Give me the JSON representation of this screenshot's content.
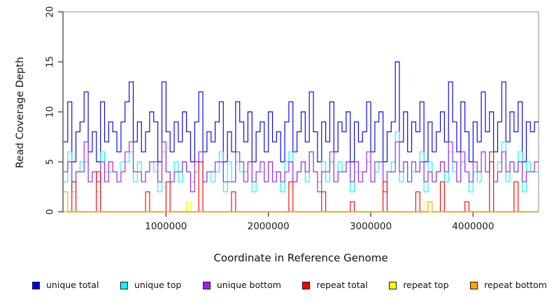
{
  "figure": {
    "background": "#FFFFFF",
    "axis_color": "#4D4D4D",
    "box_color": "#A6A6A6",
    "tick_label_color": "#1A1A1A",
    "tick_font_size": 13
  },
  "chart_data": {
    "type": "line",
    "subtype": "step",
    "title": "",
    "xlabel": "Coordinate in Reference Genome",
    "ylabel": "Read Coverage Depth",
    "xlim": [
      0,
      4640000
    ],
    "ylim": [
      0,
      20
    ],
    "xticks": [
      1000000,
      2000000,
      3000000,
      4000000
    ],
    "xtick_labels": [
      "1000000",
      "2000000",
      "3000000",
      "4000000"
    ],
    "yticks": [
      0,
      5,
      10,
      15,
      20
    ],
    "ytick_labels": [
      "0",
      "5",
      "10",
      "15",
      "20"
    ],
    "grid": false,
    "legend_position": "bottom",
    "x_start": 0,
    "bin_size": 40000,
    "series": [
      {
        "name": "unique total",
        "color": "#0000EE",
        "values": [
          7,
          11,
          5,
          8,
          9,
          12,
          6,
          8,
          5,
          11,
          7,
          9,
          8,
          6,
          9,
          11,
          13,
          7,
          9,
          6,
          8,
          10,
          9,
          5,
          13,
          8,
          6,
          9,
          7,
          10,
          8,
          5,
          9,
          12,
          6,
          8,
          7,
          9,
          11,
          5,
          8,
          6,
          11,
          9,
          7,
          10,
          5,
          8,
          9,
          6,
          10,
          7,
          8,
          5,
          9,
          11,
          6,
          8,
          10,
          7,
          12,
          8,
          5,
          9,
          7,
          11,
          6,
          9,
          8,
          10,
          5,
          9,
          7,
          8,
          11,
          6,
          9,
          10,
          5,
          8,
          9,
          15,
          7,
          10,
          6,
          9,
          8,
          11,
          5,
          9,
          6,
          8,
          10,
          7,
          13,
          9,
          6,
          11,
          8,
          5,
          9,
          7,
          12,
          8,
          10,
          6,
          9,
          13,
          7,
          10,
          8,
          11,
          5,
          9,
          8,
          9
        ]
      },
      {
        "name": "unique top",
        "color": "#00FFFF",
        "values": [
          3,
          6,
          2,
          4,
          5,
          5,
          3,
          4,
          2,
          6,
          4,
          4,
          4,
          3,
          5,
          5,
          6,
          3,
          5,
          3,
          4,
          5,
          4,
          2,
          6,
          4,
          3,
          5,
          3,
          5,
          4,
          3,
          4,
          6,
          3,
          4,
          3,
          4,
          6,
          2,
          5,
          3,
          5,
          4,
          4,
          5,
          2,
          4,
          4,
          3,
          5,
          4,
          4,
          2,
          5,
          6,
          3,
          4,
          5,
          3,
          6,
          4,
          3,
          5,
          3,
          5,
          3,
          5,
          4,
          5,
          2,
          4,
          4,
          4,
          5,
          3,
          4,
          5,
          3,
          4,
          5,
          8,
          3,
          5,
          3,
          4,
          4,
          6,
          2,
          5,
          3,
          4,
          5,
          3,
          6,
          4,
          3,
          5,
          4,
          2,
          4,
          3,
          6,
          4,
          5,
          3,
          5,
          7,
          3,
          5,
          4,
          6,
          2,
          5,
          4,
          4
        ]
      },
      {
        "name": "unique bottom",
        "color": "#A020F0",
        "values": [
          4,
          5,
          3,
          4,
          4,
          7,
          3,
          4,
          3,
          5,
          3,
          5,
          4,
          3,
          4,
          6,
          7,
          4,
          4,
          3,
          4,
          5,
          5,
          3,
          7,
          4,
          3,
          4,
          4,
          5,
          4,
          2,
          5,
          6,
          3,
          4,
          4,
          5,
          5,
          3,
          3,
          3,
          6,
          5,
          3,
          5,
          3,
          4,
          5,
          3,
          5,
          3,
          4,
          3,
          4,
          5,
          3,
          4,
          5,
          4,
          6,
          4,
          2,
          4,
          4,
          6,
          3,
          4,
          4,
          5,
          3,
          5,
          3,
          4,
          6,
          3,
          5,
          5,
          2,
          4,
          4,
          7,
          4,
          5,
          3,
          5,
          4,
          5,
          3,
          4,
          3,
          4,
          5,
          4,
          7,
          5,
          3,
          6,
          4,
          3,
          5,
          4,
          6,
          4,
          5,
          3,
          4,
          6,
          4,
          5,
          4,
          5,
          3,
          4,
          4,
          5
        ]
      },
      {
        "name": "repeat total",
        "color": "#FF0000",
        "values": [
          0,
          0,
          3,
          0,
          0,
          0,
          0,
          0,
          4,
          0,
          0,
          0,
          0,
          0,
          0,
          0,
          0,
          0,
          0,
          0,
          2,
          0,
          0,
          0,
          0,
          3,
          0,
          0,
          0,
          0,
          0,
          0,
          0,
          5,
          0,
          0,
          0,
          0,
          0,
          0,
          0,
          2,
          0,
          0,
          0,
          0,
          0,
          0,
          0,
          0,
          0,
          0,
          0,
          0,
          0,
          3,
          0,
          0,
          0,
          0,
          0,
          0,
          0,
          2,
          0,
          0,
          0,
          0,
          0,
          0,
          1,
          0,
          0,
          0,
          0,
          0,
          0,
          0,
          3,
          0,
          0,
          0,
          0,
          0,
          0,
          0,
          2,
          0,
          0,
          0,
          0,
          0,
          3,
          0,
          0,
          0,
          0,
          0,
          1,
          0,
          0,
          0,
          0,
          0,
          6,
          0,
          0,
          0,
          0,
          0,
          3,
          0,
          0,
          0,
          0,
          0
        ]
      },
      {
        "name": "repeat top",
        "color": "#FFFF00",
        "values": [
          0,
          0,
          0,
          0,
          0,
          0,
          0,
          0,
          0,
          0,
          0,
          0,
          0,
          0,
          0,
          0,
          0,
          0,
          0,
          0,
          0,
          0,
          0,
          0,
          0,
          0,
          0,
          0,
          0,
          0,
          1,
          0,
          0,
          0,
          0,
          0,
          0,
          0,
          0,
          0,
          0,
          0,
          0,
          0,
          0,
          0,
          0,
          0,
          0,
          0,
          0,
          0,
          0,
          0,
          0,
          0,
          0,
          0,
          0,
          0,
          0,
          0,
          0,
          0,
          0,
          0,
          0,
          0,
          0,
          0,
          0,
          0,
          0,
          0,
          0,
          0,
          0,
          0,
          0,
          0,
          0,
          0,
          0,
          0,
          0,
          0,
          0,
          0,
          1,
          0,
          0,
          0,
          0,
          0,
          0,
          0,
          0,
          0,
          0,
          0,
          0,
          0,
          0,
          0,
          0,
          0,
          0,
          0,
          0,
          0,
          0,
          0,
          0,
          0,
          0,
          0
        ]
      },
      {
        "name": "repeat bottom",
        "color": "#FFA500",
        "values": [
          2,
          0,
          0,
          0,
          0,
          0,
          0,
          0,
          0,
          0,
          0,
          0,
          0,
          0,
          0,
          0,
          0,
          0,
          0,
          0,
          0,
          0,
          0,
          0,
          0,
          0,
          0,
          0,
          0,
          0,
          0,
          0,
          0,
          0,
          0,
          0,
          0,
          0,
          0,
          0,
          0,
          0,
          0,
          0,
          0,
          0,
          0,
          0,
          0,
          0,
          0,
          0,
          0,
          0,
          0,
          0,
          0,
          0,
          0,
          0,
          0,
          0,
          0,
          0,
          0,
          0,
          0,
          0,
          0,
          0,
          0,
          0,
          0,
          0,
          0,
          0,
          0,
          0,
          0,
          0,
          0,
          0,
          0,
          0,
          0,
          0,
          0,
          0,
          0,
          1,
          0,
          0,
          0,
          0,
          0,
          0,
          0,
          0,
          0,
          0,
          0,
          0,
          0,
          0,
          0,
          0,
          0,
          0,
          0,
          0,
          0,
          0,
          0,
          0,
          0,
          0
        ]
      }
    ]
  }
}
